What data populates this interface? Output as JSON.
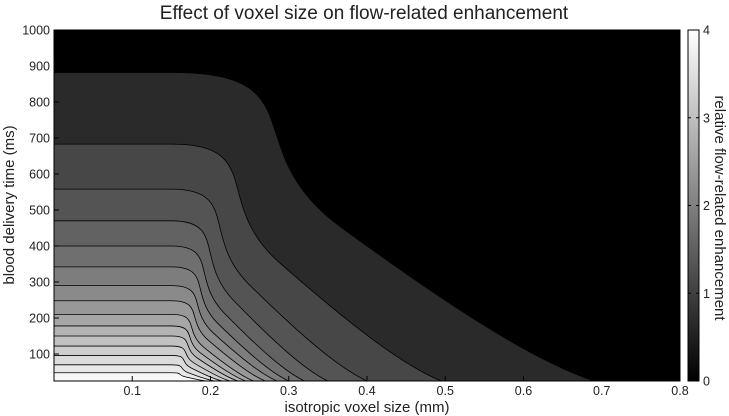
{
  "chart_data": {
    "type": "contour",
    "title": "Effect of voxel size on flow-related enhancement",
    "xlabel": "isotropic voxel size (mm)",
    "ylabel": "blood delivery time (ms)",
    "colorbar_label": "relative flow-related enhancement",
    "xlim": [
      0,
      0.8
    ],
    "ylim": [
      25,
      1000
    ],
    "x_ticks": [
      0.1,
      0.2,
      0.3,
      0.4,
      0.5,
      0.6,
      0.7,
      0.8
    ],
    "x_tick_labels": [
      "0.1",
      "0.2",
      "0.3",
      "0.4",
      "0.5",
      "0.6",
      "0.7",
      "0.8"
    ],
    "y_ticks": [
      100,
      200,
      300,
      400,
      500,
      600,
      700,
      800,
      900,
      1000
    ],
    "y_tick_labels": [
      "100",
      "200",
      "300",
      "400",
      "500",
      "600",
      "700",
      "800",
      "900",
      "1000"
    ],
    "colorbar_range": [
      0,
      4
    ],
    "colorbar_ticks": [
      0,
      1,
      2,
      3,
      4
    ],
    "colorbar_tick_labels": [
      "0",
      "1",
      "2",
      "3",
      "4"
    ],
    "colormap": "gray",
    "background_color": "#000000",
    "contour_levels": [
      {
        "level": 1,
        "plateau_delivery_time_ms": 882,
        "x_at_min_delivery_mm": 0.69,
        "fill": "#2a2a2a"
      },
      {
        "level": 2,
        "plateau_delivery_time_ms": 683,
        "x_at_min_delivery_mm": 0.495,
        "fill": "#474747"
      },
      {
        "level": 3,
        "plateau_delivery_time_ms": 558,
        "x_at_min_delivery_mm": 0.4,
        "fill": "#545454"
      },
      {
        "level": 4,
        "plateau_delivery_time_ms": 470,
        "x_at_min_delivery_mm": 0.35,
        "fill": "#626262"
      },
      {
        "level": 5,
        "plateau_delivery_time_ms": 400,
        "x_at_min_delivery_mm": 0.32,
        "fill": "#6f6f6f"
      },
      {
        "level": 6,
        "plateau_delivery_time_ms": 342,
        "x_at_min_delivery_mm": 0.3,
        "fill": "#7d7d7d"
      },
      {
        "level": 7,
        "plateau_delivery_time_ms": 290,
        "x_at_min_delivery_mm": 0.285,
        "fill": "#8a8a8a"
      },
      {
        "level": 8,
        "plateau_delivery_time_ms": 248,
        "x_at_min_delivery_mm": 0.27,
        "fill": "#989898"
      },
      {
        "level": 9,
        "plateau_delivery_time_ms": 210,
        "x_at_min_delivery_mm": 0.255,
        "fill": "#a6a6a6"
      },
      {
        "level": 10,
        "plateau_delivery_time_ms": 178,
        "x_at_min_delivery_mm": 0.245,
        "fill": "#b3b3b3"
      },
      {
        "level": 11,
        "plateau_delivery_time_ms": 150,
        "x_at_min_delivery_mm": 0.235,
        "fill": "#c1c1c1"
      },
      {
        "level": 12,
        "plateau_delivery_time_ms": 122,
        "x_at_min_delivery_mm": 0.225,
        "fill": "#cecece"
      },
      {
        "level": 13,
        "plateau_delivery_time_ms": 96,
        "x_at_min_delivery_mm": 0.215,
        "fill": "#dcdcdc"
      },
      {
        "level": 14,
        "plateau_delivery_time_ms": 70,
        "x_at_min_delivery_mm": 0.205,
        "fill": "#e9e9e9"
      },
      {
        "level": 15,
        "plateau_delivery_time_ms": 48,
        "x_at_min_delivery_mm": 0.195,
        "fill": "#f7f7f7"
      }
    ]
  }
}
